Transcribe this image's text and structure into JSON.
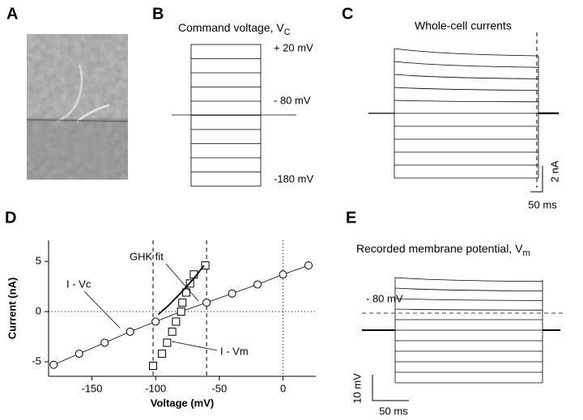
{
  "panels": {
    "A": {
      "label": "A"
    },
    "B": {
      "label": "B",
      "title": "Command voltage, V",
      "title_sub": "C",
      "level_top": "+ 20 mV",
      "level_mid": "- 80 mV",
      "level_bottom": "-180 mV"
    },
    "C": {
      "label": "C",
      "title": "Whole-cell currents",
      "scale_y": "2 nA",
      "scale_x": "50 ms"
    },
    "D": {
      "label": "D"
    },
    "E": {
      "label": "E",
      "title": "Recorded membrane potential, V",
      "title_sub": "m",
      "level_mid": "- 80 mV",
      "scale_y": "10 mV",
      "scale_x": "50 ms"
    }
  },
  "chart_data": {
    "type": "scatter",
    "x_label": "Voltage (mV)",
    "y_label": "Current (nA)",
    "xlim": [
      -184,
      25.7
    ],
    "ylim": [
      -6.45,
      7.1
    ],
    "xticks": [
      -150,
      -100,
      -50,
      0
    ],
    "yticks": [
      -5,
      0,
      5
    ],
    "dashed_x": [
      -102,
      -60
    ],
    "dotted_x": [
      0
    ],
    "dotted_y": [
      0
    ],
    "series": [
      {
        "name": "I - Vc",
        "marker": "circle",
        "color": "#000000",
        "x": [
          -180,
          -160,
          -140,
          -120,
          -100,
          -80,
          -60,
          -40,
          -20,
          0,
          20
        ],
        "values": [
          -5.3,
          -4.2,
          -3.1,
          -2.0,
          -1.0,
          0,
          0.9,
          1.8,
          2.7,
          3.7,
          4.6
        ]
      },
      {
        "name": "I - Vm",
        "marker": "square",
        "color": "#000000",
        "x": [
          -102,
          -95,
          -91,
          -87,
          -84,
          -80,
          -79,
          -76,
          -73,
          -70,
          -61
        ],
        "values": [
          -5.4,
          -4.2,
          -3.1,
          -2.0,
          -1.0,
          0,
          0.9,
          1.9,
          2.8,
          3.7,
          4.6
        ]
      },
      {
        "name": "GHK fit",
        "marker": "line",
        "color": "#000000",
        "x": [
          -98,
          -90,
          -80,
          -70,
          -62
        ],
        "values": [
          -0.3,
          0.6,
          1.9,
          3.3,
          4.6
        ]
      }
    ]
  }
}
